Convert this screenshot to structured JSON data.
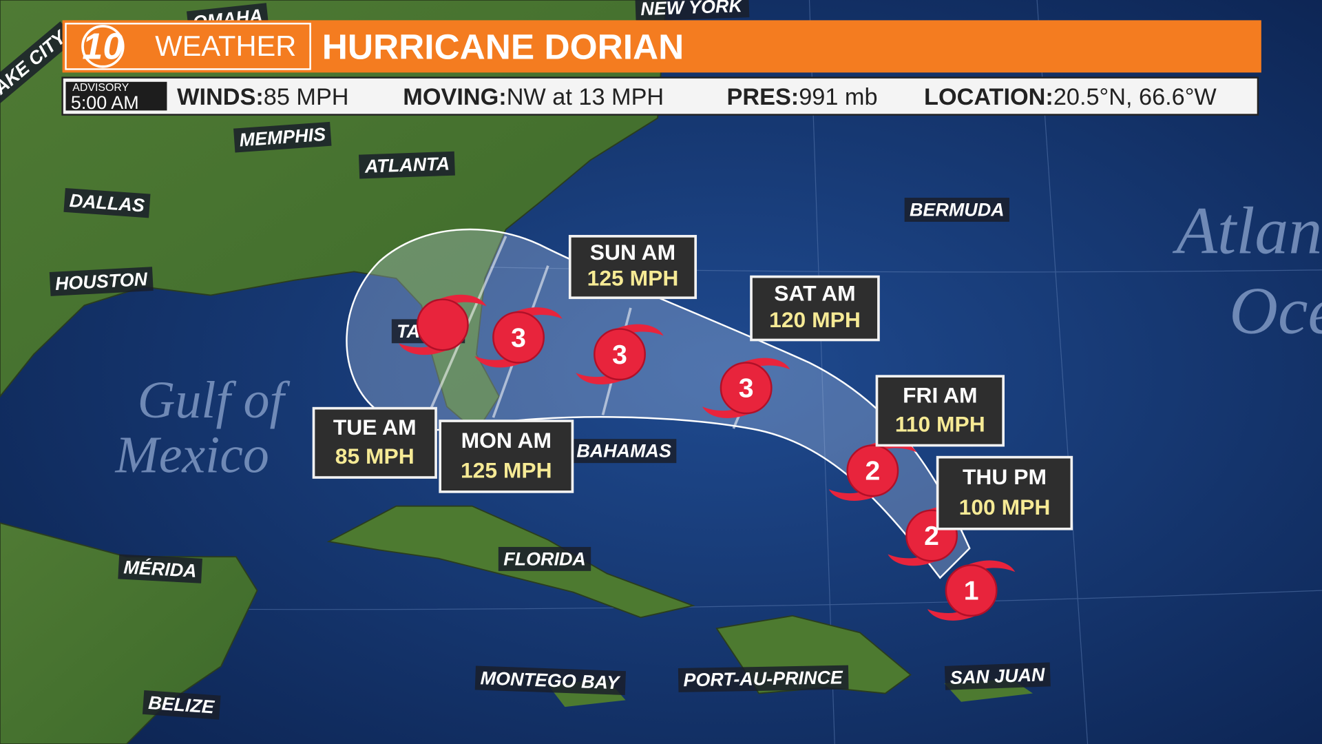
{
  "header": {
    "logo": "10",
    "brand": "WEATHER",
    "title": "HURRICANE DORIAN"
  },
  "advisory": {
    "label": "ADVISORY",
    "time": "5:00 AM"
  },
  "stats": [
    {
      "label": "WINDS:",
      "value": "85 MPH"
    },
    {
      "label": "MOVING:",
      "value": "NW at 13 MPH"
    },
    {
      "label": "PRES:",
      "value": "991 mb"
    },
    {
      "label": "LOCATION:",
      "value": "20.5°N, 66.6°W"
    }
  ],
  "places": [
    "NEW YORK",
    "OMAHA",
    "LAKE CITY",
    "MEMPHIS",
    "ATLANTA",
    "DALLAS",
    "HOUSTON",
    "BERMUDA",
    "TAMPA",
    "BAHAMAS",
    "FLORIDA",
    "MÉRIDA",
    "MONTEGO BAY",
    "PORT-AU-PRINCE",
    "SAN JUAN",
    "BELIZE"
  ],
  "water_labels": [
    "Gulf of",
    "Mexico",
    "Atlantic",
    "Ocean"
  ],
  "forecast": [
    {
      "time": "TUE AM",
      "wind": "85 MPH"
    },
    {
      "time": "MON AM",
      "wind": "125 MPH"
    },
    {
      "time": "SUN AM",
      "wind": "125 MPH"
    },
    {
      "time": "SAT AM",
      "wind": "120 MPH"
    },
    {
      "time": "FRI AM",
      "wind": "110 MPH"
    },
    {
      "time": "THU PM",
      "wind": "100 MPH"
    }
  ],
  "storm_categories": [
    "3",
    "3",
    "3",
    "2",
    "2",
    "1"
  ]
}
